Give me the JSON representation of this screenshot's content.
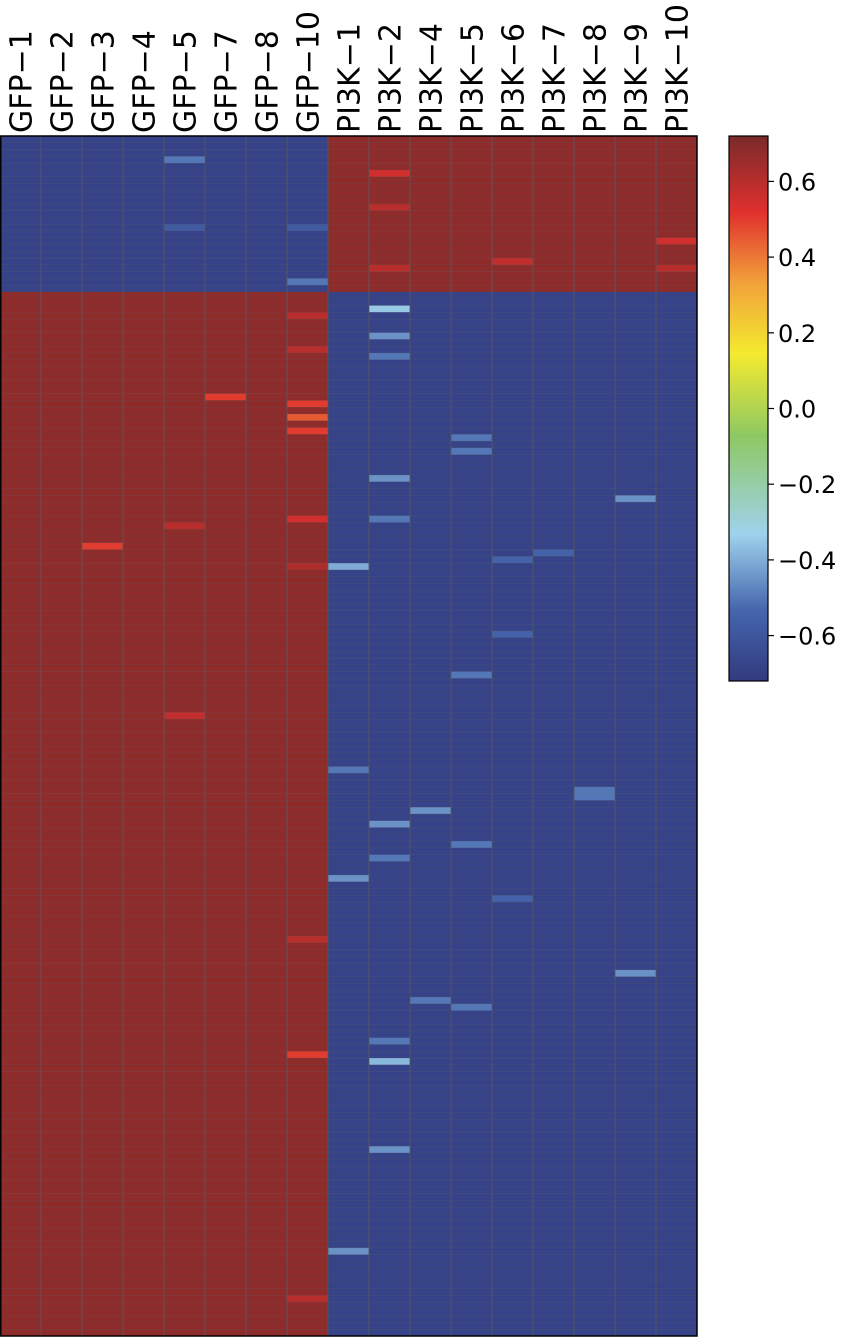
{
  "chart_data": {
    "type": "heatmap",
    "title": "",
    "xlabel": "",
    "ylabel": "",
    "columns": [
      "GFP−1",
      "GFP−2",
      "GFP−3",
      "GFP−4",
      "GFP−5",
      "GFP−7",
      "GFP−8",
      "GFP−10",
      "PI3K−1",
      "PI3K−2",
      "PI3K−4",
      "PI3K−5",
      "PI3K−6",
      "PI3K−7",
      "PI3K−8",
      "PI3K−9",
      "PI3K−10"
    ],
    "groups": [
      {
        "name": "GFP",
        "columns": [
          "GFP−1",
          "GFP−2",
          "GFP−3",
          "GFP−4",
          "GFP−5",
          "GFP−7",
          "GFP−8",
          "GFP−10"
        ]
      },
      {
        "name": "PI3K",
        "columns": [
          "PI3K−1",
          "PI3K−2",
          "PI3K−4",
          "PI3K−5",
          "PI3K−6",
          "PI3K−7",
          "PI3K−8",
          "PI3K−9",
          "PI3K−10"
        ]
      }
    ],
    "row_count": 177,
    "row_blocks": [
      {
        "rows": 23,
        "GFP_value": -0.68,
        "PI3K_value": 0.68
      },
      {
        "rows": 154,
        "GFP_value": 0.68,
        "PI3K_value": -0.68
      }
    ],
    "notable_cells": [
      {
        "col": "GFP−5",
        "row": 3,
        "value": -0.5
      },
      {
        "col": "GFP−5",
        "row": 13,
        "value": -0.58
      },
      {
        "col": "GFP−10",
        "row": 13,
        "value": -0.58
      },
      {
        "col": "GFP−10",
        "row": 21,
        "value": -0.5
      },
      {
        "col": "PI3K−2",
        "row": 5,
        "value": 0.55
      },
      {
        "col": "PI3K−2",
        "row": 10,
        "value": 0.6
      },
      {
        "col": "PI3K−2",
        "row": 19,
        "value": 0.6
      },
      {
        "col": "PI3K−6",
        "row": 18,
        "value": 0.58
      },
      {
        "col": "PI3K−10",
        "row": 15,
        "value": 0.55
      },
      {
        "col": "PI3K−10",
        "row": 19,
        "value": 0.6
      },
      {
        "col": "GFP−7",
        "row": 38,
        "value": 0.5
      },
      {
        "col": "GFP−10",
        "row": 26,
        "value": 0.6
      },
      {
        "col": "GFP−10",
        "row": 31,
        "value": 0.6
      },
      {
        "col": "GFP−10",
        "row": 39,
        "value": 0.5
      },
      {
        "col": "GFP−10",
        "row": 41,
        "value": 0.45
      },
      {
        "col": "GFP−10",
        "row": 43,
        "value": 0.5
      },
      {
        "col": "GFP−10",
        "row": 56,
        "value": 0.55
      },
      {
        "col": "GFP−5",
        "row": 57,
        "value": 0.6
      },
      {
        "col": "GFP−3",
        "row": 60,
        "value": 0.5
      },
      {
        "col": "GFP−10",
        "row": 63,
        "value": 0.62
      },
      {
        "col": "GFP−5",
        "row": 85,
        "value": 0.58
      },
      {
        "col": "GFP−10",
        "row": 118,
        "value": 0.6
      },
      {
        "col": "GFP−10",
        "row": 135,
        "value": 0.5
      },
      {
        "col": "GFP−10",
        "row": 171,
        "value": 0.6
      },
      {
        "col": "PI3K−2",
        "row": 25,
        "value": -0.35
      },
      {
        "col": "PI3K−2",
        "row": 29,
        "value": -0.45
      },
      {
        "col": "PI3K−2",
        "row": 32,
        "value": -0.5
      },
      {
        "col": "PI3K−2",
        "row": 50,
        "value": -0.45
      },
      {
        "col": "PI3K−2",
        "row": 56,
        "value": -0.5
      },
      {
        "col": "PI3K−2",
        "row": 101,
        "value": -0.45
      },
      {
        "col": "PI3K−2",
        "row": 106,
        "value": -0.5
      },
      {
        "col": "PI3K−2",
        "row": 133,
        "value": -0.5
      },
      {
        "col": "PI3K−2",
        "row": 136,
        "value": -0.38
      },
      {
        "col": "PI3K−2",
        "row": 149,
        "value": -0.45
      },
      {
        "col": "PI3K−1",
        "row": 63,
        "value": -0.4
      },
      {
        "col": "PI3K−1",
        "row": 93,
        "value": -0.5
      },
      {
        "col": "PI3K−1",
        "row": 109,
        "value": -0.45
      },
      {
        "col": "PI3K−1",
        "row": 164,
        "value": -0.45
      },
      {
        "col": "PI3K−4",
        "row": 99,
        "value": -0.45
      },
      {
        "col": "PI3K−4",
        "row": 127,
        "value": -0.5
      },
      {
        "col": "PI3K−5",
        "row": 44,
        "value": -0.5
      },
      {
        "col": "PI3K−5",
        "row": 46,
        "value": -0.5
      },
      {
        "col": "PI3K−5",
        "row": 79,
        "value": -0.5
      },
      {
        "col": "PI3K−5",
        "row": 104,
        "value": -0.5
      },
      {
        "col": "PI3K−5",
        "row": 128,
        "value": -0.5
      },
      {
        "col": "PI3K−6",
        "row": 62,
        "value": -0.55
      },
      {
        "col": "PI3K−6",
        "row": 73,
        "value": -0.55
      },
      {
        "col": "PI3K−6",
        "row": 112,
        "value": -0.55
      },
      {
        "col": "PI3K−7",
        "row": 61,
        "value": -0.55
      },
      {
        "col": "PI3K−8",
        "row": 96,
        "value": -0.5
      },
      {
        "col": "PI3K−8",
        "row": 97,
        "value": -0.5
      },
      {
        "col": "PI3K−9",
        "row": 53,
        "value": -0.45
      },
      {
        "col": "PI3K−9",
        "row": 123,
        "value": -0.45
      }
    ],
    "colorbar": {
      "ticks": [
        "0.6",
        "0.4",
        "0.2",
        "0.0",
        "−0.2",
        "−0.4",
        "−0.6"
      ],
      "tick_values": [
        0.6,
        0.4,
        0.2,
        0.0,
        -0.2,
        -0.4,
        -0.6
      ],
      "range": [
        -0.72,
        0.72
      ]
    },
    "colors": {
      "low": "#323a7e",
      "high": "#7a2a2a",
      "gridline": "#5b5b5b",
      "scale": [
        "#323a7e",
        "#4566ad",
        "#9fd2ec",
        "#8ec863",
        "#f4ea2f",
        "#f1a23a",
        "#e0302e",
        "#7a2a2a"
      ]
    }
  }
}
